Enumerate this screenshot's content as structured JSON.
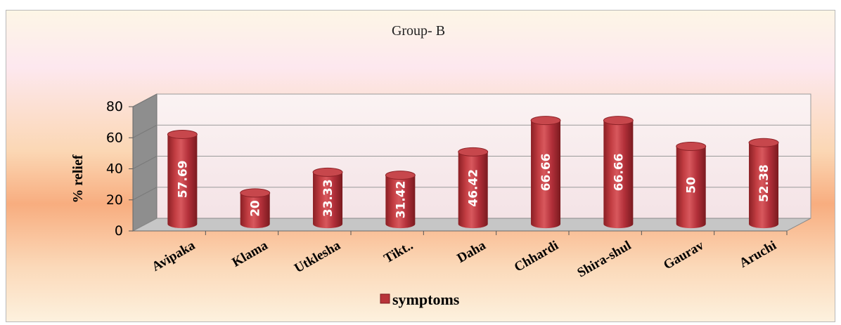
{
  "chart_data": {
    "type": "bar",
    "title": "Group-  B",
    "ylabel": "% relief",
    "xlabel": "",
    "categories": [
      "Avipaka",
      "Klama",
      "Utklesha",
      "Tikt..",
      "Daha",
      "Chhardi",
      "Shira-shul",
      "Gaurav",
      "Aruchi"
    ],
    "series": [
      {
        "name": "symptoms",
        "values": [
          57.69,
          20,
          33.33,
          31.42,
          46.42,
          66.66,
          66.66,
          50,
          52.38
        ]
      }
    ],
    "data_labels": [
      "57.69",
      "20",
      "33.33",
      "31.42",
      "46.42",
      "66.66",
      "66.66",
      "50",
      "52.38"
    ],
    "ylim": [
      0,
      80
    ],
    "yticks": [
      "0",
      "20",
      "40",
      "60",
      "80"
    ],
    "grid": true,
    "legend_position": "bottom",
    "three_d": true,
    "bar_shape": "cylinder",
    "colors": {
      "bar": "#b8343a",
      "bar_dark": "#7d1a1f",
      "bar_light": "#e06a6e",
      "wall": "#f9eef0",
      "floor": "#c9c9c9",
      "background_top": "#fdf4dc",
      "background_mid": "#f9b07a"
    }
  }
}
